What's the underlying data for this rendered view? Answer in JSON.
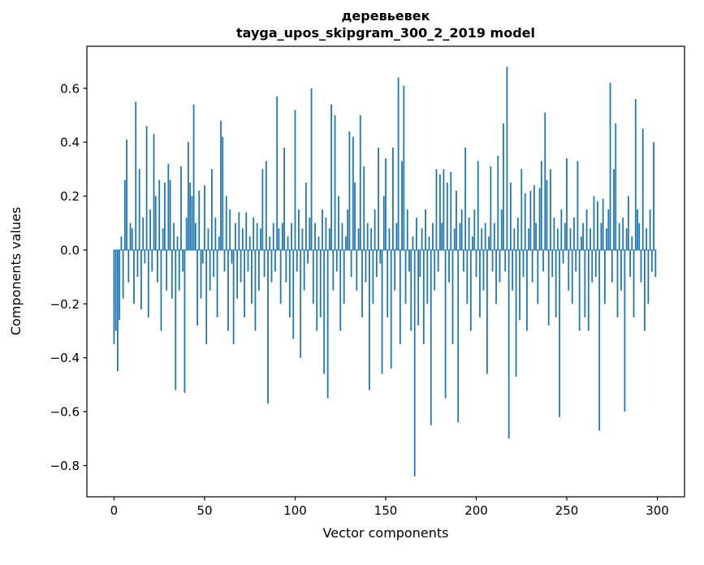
{
  "figure": {
    "background": "#ffffff"
  },
  "chart_data": {
    "type": "bar",
    "title_line1": "деревьевек",
    "title_line2": "tayga_upos_skipgram_300_2_2019 model",
    "xlabel": "Vector components",
    "ylabel": "Components values",
    "bar_color": "#1f77b4",
    "spine_color": "#000000",
    "xlim": [
      -15,
      315
    ],
    "ylim": [
      -0.916,
      0.756
    ],
    "x_ticks": [
      0,
      50,
      100,
      150,
      200,
      250,
      300
    ],
    "y_ticks": [
      -0.8,
      -0.6,
      -0.4,
      -0.2,
      0.0,
      0.2,
      0.4,
      0.6
    ],
    "values": [
      -0.35,
      -0.3,
      -0.45,
      -0.26,
      0.05,
      -0.18,
      0.26,
      0.41,
      -0.12,
      0.1,
      0.08,
      -0.2,
      0.55,
      -0.1,
      0.3,
      -0.22,
      0.12,
      -0.05,
      0.46,
      -0.25,
      0.15,
      -0.08,
      0.43,
      0.2,
      -0.12,
      0.26,
      -0.3,
      0.08,
      0.25,
      -0.15,
      0.32,
      0.26,
      -0.18,
      0.1,
      -0.52,
      0.05,
      -0.15,
      0.31,
      -0.08,
      -0.53,
      0.12,
      0.4,
      0.25,
      0.2,
      0.54,
      0.1,
      -0.28,
      0.22,
      -0.18,
      -0.05,
      0.24,
      -0.35,
      0.08,
      -0.15,
      0.3,
      -0.1,
      0.12,
      -0.25,
      0.05,
      0.48,
      0.42,
      -0.08,
      0.2,
      -0.3,
      0.15,
      -0.05,
      -0.35,
      0.1,
      -0.18,
      0.14,
      -0.12,
      0.08,
      -0.25,
      0.14,
      -0.08,
      0.05,
      -0.2,
      0.12,
      -0.3,
      0.1,
      -0.15,
      0.08,
      0.3,
      -0.1,
      0.33,
      -0.57,
      0.05,
      -0.12,
      0.1,
      -0.08,
      0.57,
      0.08,
      -0.2,
      0.1,
      0.38,
      -0.12,
      0.05,
      -0.25,
      0.1,
      -0.33,
      0.52,
      -0.08,
      0.15,
      -0.4,
      0.08,
      -0.15,
      0.25,
      -0.05,
      0.12,
      0.6,
      -0.2,
      0.1,
      -0.3,
      0.05,
      -0.25,
      0.15,
      -0.46,
      0.12,
      -0.55,
      0.08,
      0.54,
      -0.15,
      0.5,
      -0.08,
      0.2,
      -0.3,
      0.1,
      -0.2,
      0.05,
      0.15,
      0.44,
      -0.1,
      0.42,
      0.25,
      -0.15,
      0.08,
      0.5,
      -0.25,
      0.31,
      -0.12,
      0.1,
      -0.52,
      0.08,
      -0.2,
      0.15,
      -0.1,
      0.38,
      -0.05,
      -0.46,
      0.2,
      0.34,
      -0.25,
      0.08,
      -0.44,
      0.38,
      -0.15,
      0.1,
      0.64,
      -0.35,
      0.33,
      0.61,
      -0.2,
      0.15,
      -0.08,
      -0.3,
      0.05,
      -0.84,
      0.12,
      -0.28,
      -0.1,
      0.08,
      -0.35,
      0.15,
      -0.2,
      0.05,
      -0.65,
      0.1,
      -0.15,
      0.3,
      -0.08,
      0.28,
      0.1,
      0.3,
      -0.55,
      0.25,
      -0.12,
      0.29,
      -0.35,
      0.08,
      0.22,
      -0.64,
      0.1,
      0.15,
      -0.08,
      0.38,
      -0.2,
      0.12,
      -0.3,
      0.05,
      0.15,
      -0.1,
      0.33,
      -0.25,
      0.08,
      -0.15,
      0.1,
      -0.46,
      0.05,
      0.31,
      -0.08,
      0.1,
      -0.2,
      0.35,
      -0.12,
      0.15,
      0.47,
      -0.08,
      0.68,
      -0.7,
      0.25,
      -0.15,
      0.08,
      -0.47,
      0.12,
      -0.26,
      0.3,
      -0.1,
      0.21,
      -0.3,
      0.08,
      0.22,
      -0.12,
      0.24,
      0.1,
      -0.2,
      0.23,
      0.33,
      -0.08,
      0.51,
      0.26,
      -0.28,
      0.3,
      -0.1,
      0.12,
      -0.25,
      0.08,
      -0.62,
      0.15,
      -0.05,
      0.1,
      0.34,
      -0.15,
      0.08,
      -0.2,
      0.12,
      -0.08,
      0.33,
      -0.3,
      0.05,
      0.1,
      -0.25,
      0.15,
      -0.3,
      0.08,
      -0.12,
      0.2,
      -0.1,
      0.18,
      -0.67,
      0.1,
      0.19,
      -0.2,
      0.08,
      0.15,
      0.62,
      -0.12,
      0.3,
      0.47,
      -0.25,
      0.1,
      -0.15,
      0.12,
      -0.6,
      0.08,
      0.2,
      -0.1,
      0.05,
      -0.25,
      0.56,
      0.15,
      0.1,
      -0.12,
      0.45,
      -0.3,
      0.08,
      -0.2,
      0.15,
      -0.08,
      0.4,
      -0.1
    ]
  }
}
